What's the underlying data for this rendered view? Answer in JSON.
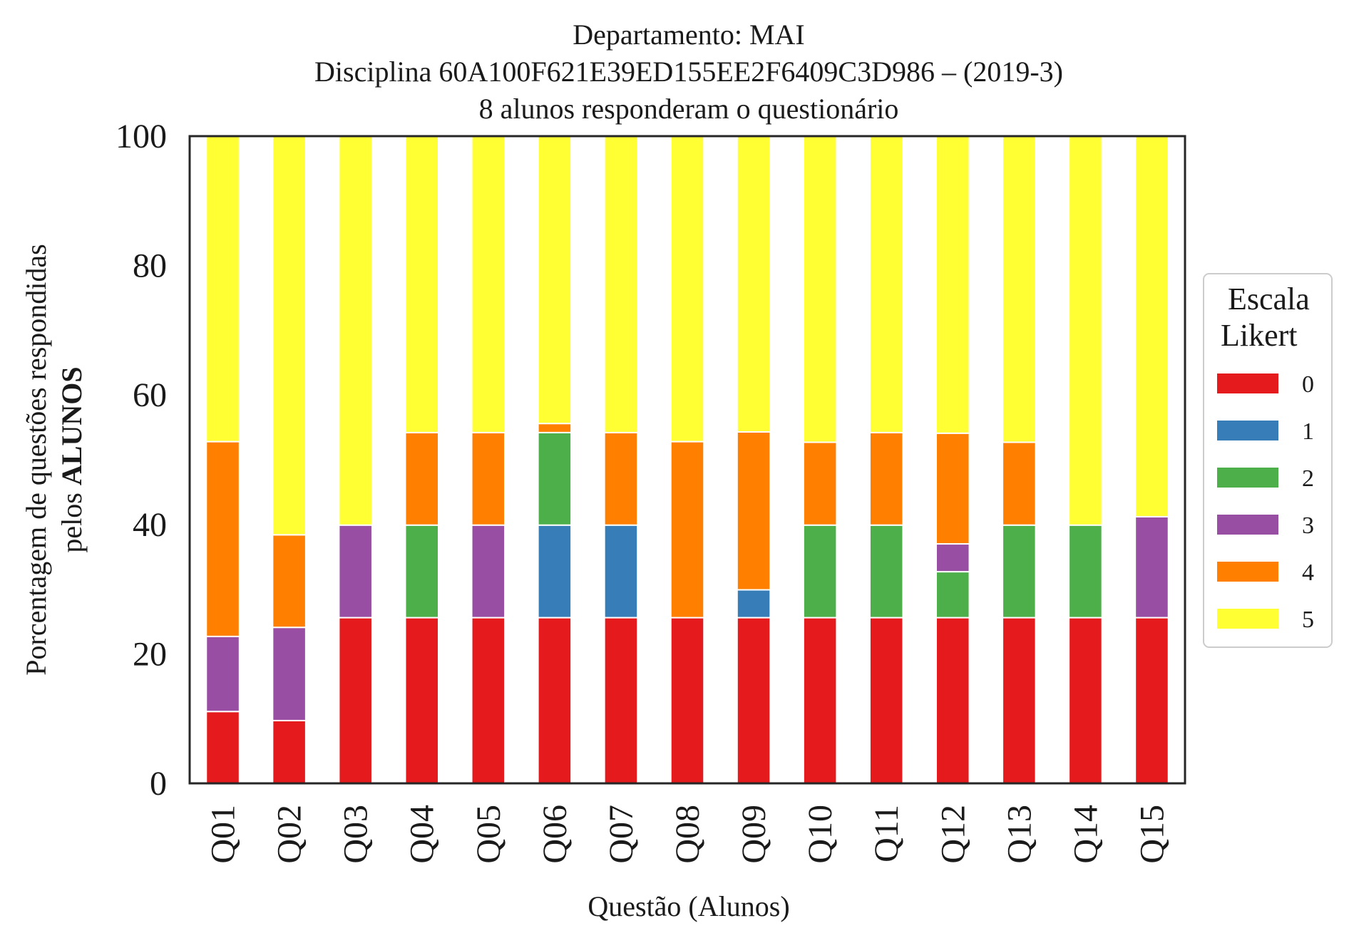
{
  "chart_data": {
    "type": "bar",
    "stacked": true,
    "title_lines": [
      "Departamento: MAI",
      "Disciplina 60A100F621E39ED155EE2F6409C3D986 – (2019-3)",
      "8 alunos responderam o questionário"
    ],
    "xlabel": "Questão (Alunos)",
    "ylabel_line1": "Porcentagem de questões respondidas",
    "ylabel_line2_prefix": "pelos ",
    "ylabel_line2_bold": "ALUNOS",
    "ylim": [
      0,
      100
    ],
    "yticks": [
      "0",
      "20",
      "40",
      "60",
      "80",
      "100"
    ],
    "grid": false,
    "legend_title_lines": [
      "Escala",
      "Likert"
    ],
    "legend_position": "right",
    "categories": [
      "Q01",
      "Q02",
      "Q03",
      "Q04",
      "Q05",
      "Q06",
      "Q07",
      "Q08",
      "Q09",
      "Q10",
      "Q11",
      "Q12",
      "Q13",
      "Q14",
      "Q15"
    ],
    "series": [
      {
        "name": "0",
        "color": "#e41a1c",
        "values": [
          11.1,
          9.7,
          25.6,
          25.6,
          25.6,
          25.6,
          25.6,
          25.6,
          25.6,
          25.6,
          25.6,
          25.6,
          25.6,
          25.6,
          25.6
        ]
      },
      {
        "name": "1",
        "color": "#377eb8",
        "values": [
          0,
          0,
          0,
          0,
          0,
          14.3,
          14.3,
          0,
          4.3,
          0,
          0,
          0,
          0,
          0,
          0
        ]
      },
      {
        "name": "2",
        "color": "#4daf4a",
        "values": [
          0,
          0,
          0,
          14.3,
          0,
          14.3,
          0,
          0,
          0,
          14.3,
          14.3,
          7.1,
          14.3,
          14.3,
          0
        ]
      },
      {
        "name": "3",
        "color": "#984ea3",
        "values": [
          11.6,
          14.4,
          14.3,
          0,
          14.3,
          0,
          0,
          0,
          0,
          0,
          0,
          4.3,
          0,
          0,
          15.6
        ]
      },
      {
        "name": "4",
        "color": "#ff7f00",
        "values": [
          30.1,
          14.3,
          0,
          14.3,
          14.3,
          1.4,
          14.3,
          27.2,
          24.4,
          12.8,
          14.3,
          17.1,
          12.8,
          0,
          0
        ]
      },
      {
        "name": "5",
        "color": "#ffff33",
        "values": [
          47.2,
          61.6,
          60.1,
          45.8,
          45.8,
          44.4,
          45.8,
          47.2,
          45.7,
          47.3,
          45.8,
          45.9,
          47.3,
          60.1,
          58.8
        ]
      }
    ]
  }
}
